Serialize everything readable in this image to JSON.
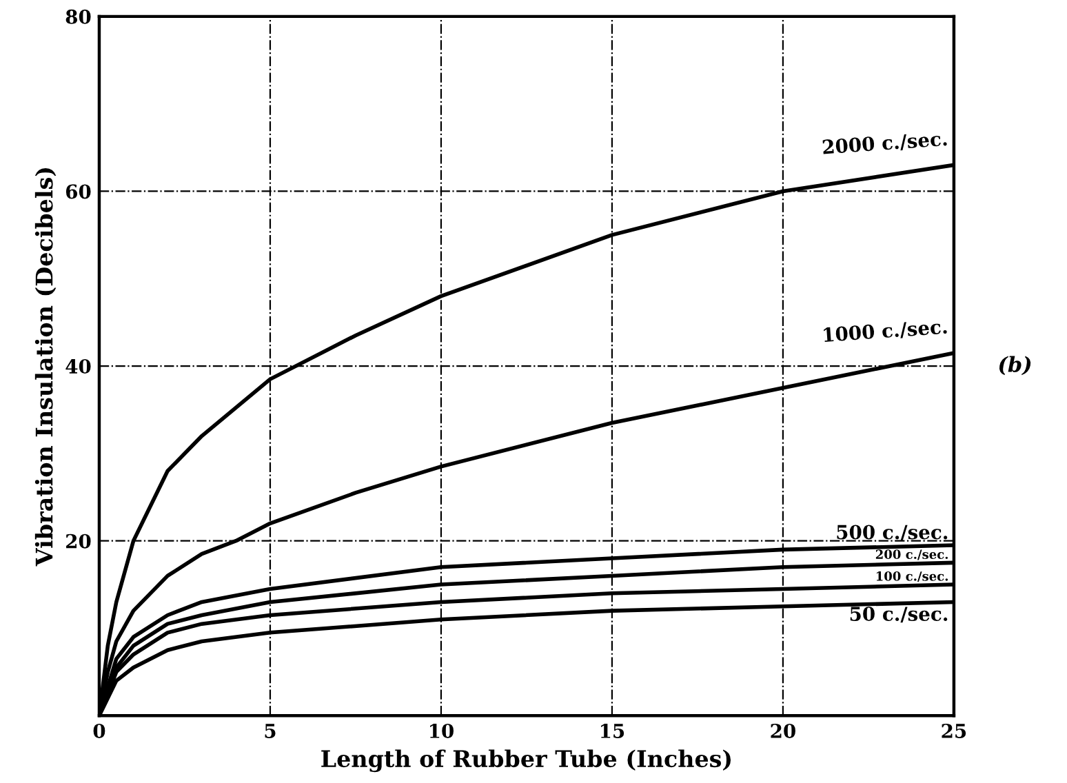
{
  "chart_data": {
    "type": "line",
    "xlabel": "Length of Rubber Tube (Inches)",
    "ylabel": "Vibration Insulation (Decibels)",
    "xlim": [
      0,
      25
    ],
    "ylim": [
      0,
      80
    ],
    "xticks": [
      0,
      5,
      10,
      15,
      20,
      25
    ],
    "yticks": [
      {
        "value": 0,
        "label": null
      },
      20,
      40,
      60,
      80
    ],
    "grid": true,
    "legend": false,
    "marker": "none",
    "line_style": "solid",
    "annotations": [
      "(b)"
    ],
    "series": [
      {
        "name": "2000 c./sec.",
        "color": "#000000",
        "x": [
          0,
          0.25,
          0.5,
          1,
          2,
          3,
          5,
          7.5,
          10,
          15,
          20,
          25
        ],
        "values": [
          0,
          8,
          13,
          20,
          28,
          32,
          38.5,
          43.5,
          48,
          55,
          60,
          63
        ]
      },
      {
        "name": "1000 c./sec.",
        "color": "#000000",
        "x": [
          0,
          0.25,
          0.5,
          1,
          2,
          3,
          4,
          5,
          7.5,
          10,
          15,
          20,
          25
        ],
        "values": [
          0,
          5,
          8.5,
          12,
          16,
          18.5,
          20,
          22,
          25.5,
          28.5,
          33.5,
          37.5,
          41.5
        ]
      },
      {
        "name": "500 c./sec.",
        "color": "#000000",
        "x": [
          0,
          0.5,
          1,
          2,
          3,
          5,
          10,
          15,
          20,
          25
        ],
        "values": [
          0,
          6.5,
          9,
          11.5,
          13,
          14.5,
          17,
          18,
          19,
          19.5
        ]
      },
      {
        "name": "200 c./sec.",
        "color": "#000000",
        "x": [
          0,
          0.5,
          1,
          2,
          3,
          5,
          10,
          15,
          20,
          25
        ],
        "values": [
          0,
          5.5,
          8,
          10.5,
          11.5,
          13,
          15,
          16,
          17,
          17.5
        ]
      },
      {
        "name": "100 c./sec.",
        "color": "#000000",
        "x": [
          0,
          0.5,
          1,
          2,
          3,
          5,
          10,
          15,
          20,
          25
        ],
        "values": [
          0,
          5,
          7,
          9.5,
          10.5,
          11.5,
          13,
          14,
          14.5,
          15
        ]
      },
      {
        "name": "50 c./sec.",
        "color": "#000000",
        "x": [
          0,
          0.5,
          1,
          2,
          3,
          5,
          10,
          15,
          20,
          25
        ],
        "values": [
          0,
          4,
          5.5,
          7.5,
          8.5,
          9.5,
          11,
          12,
          12.5,
          13
        ]
      }
    ]
  }
}
